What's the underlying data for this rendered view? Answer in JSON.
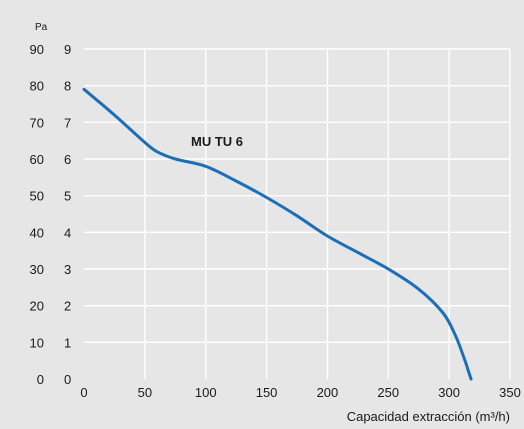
{
  "chart_data": {
    "type": "line",
    "title": "",
    "xlabel": "Capacidad extracción (m³/h)",
    "ylabel": "Pa",
    "xlim": [
      0,
      350
    ],
    "ylim": [
      0,
      9
    ],
    "grid": true,
    "x_ticks": [
      0,
      50,
      100,
      150,
      200,
      250,
      300,
      350
    ],
    "y_ticks": [
      0,
      1,
      2,
      3,
      4,
      5,
      6,
      7,
      8,
      9
    ],
    "y_ticks_pa": [
      0,
      10,
      20,
      30,
      40,
      50,
      60,
      70,
      80,
      90
    ],
    "colors": {
      "series": "#1c6fb7",
      "background": "#e6e6e6",
      "grid": "#ffffff"
    },
    "series": [
      {
        "name": "MU TU 6",
        "x": [
          0,
          25,
          50,
          60,
          75,
          100,
          125,
          150,
          175,
          200,
          225,
          250,
          275,
          295,
          305,
          312,
          316,
          318
        ],
        "y": [
          7.9,
          7.2,
          6.45,
          6.2,
          6.0,
          5.8,
          5.4,
          4.95,
          4.45,
          3.9,
          3.45,
          3.0,
          2.45,
          1.8,
          1.2,
          0.6,
          0.2,
          0.0
        ]
      }
    ]
  }
}
